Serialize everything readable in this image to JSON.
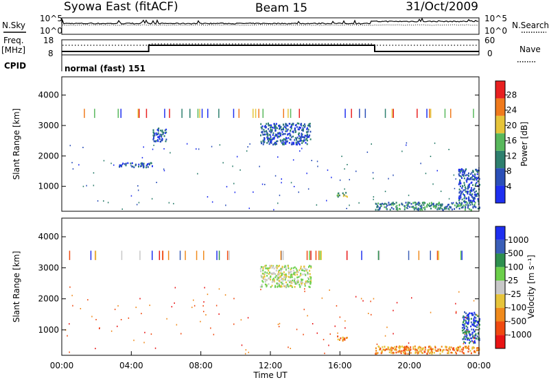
{
  "header": {
    "left": "Syowa East (fitACF)",
    "center": "Beam 15",
    "right": "31/Oct/2009"
  },
  "status_panel": {
    "nsky_label": "N.Sky",
    "nsky_top": "10^5",
    "nsky_bottom": "10^0",
    "nsearch_label": "N.Search",
    "nsearch_top": "10^5",
    "nsearch_bottom": "10^0",
    "freq_label": "Freq.",
    "freq_unit": "[MHz]",
    "freq_top": "18",
    "freq_bottom": "8",
    "nave_label": "Nave",
    "nave_top": "60",
    "nave_bottom": "0",
    "cpid_label": "CPID",
    "cpid_text": "normal (fast) 151"
  },
  "chart_data": [
    {
      "type": "heatmap",
      "name": "power",
      "ylabel": "Slant Range [km]",
      "xlabel": "",
      "ylim": [
        180,
        4600
      ],
      "yticks": [
        "1000",
        "2000",
        "3000",
        "4000"
      ],
      "xlim": [
        0,
        24
      ],
      "colorbar": {
        "label": "Power [dB]",
        "ticks": [
          "4",
          "8",
          "12",
          "16",
          "20",
          "24",
          "28"
        ],
        "colors": [
          "#1e2ff0",
          "#2b4fb8",
          "#2e7f6e",
          "#58b85c",
          "#e6c43a",
          "#f07a1c",
          "#e82020"
        ]
      },
      "features": [
        {
          "desc": "sparse echoes 2700-3000 km",
          "t": [
            5.2,
            6.0
          ],
          "r": [
            2500,
            2950
          ],
          "level": 1
        },
        {
          "desc": "scatter near 1750 km",
          "t": [
            3.2,
            5.2
          ],
          "r": [
            1650,
            1800
          ],
          "level": 1
        },
        {
          "desc": "main echo band",
          "t": [
            11.4,
            14.3
          ],
          "r": [
            2400,
            3100
          ],
          "level": 1
        },
        {
          "desc": "echo near 750 km",
          "t": [
            15.8,
            16.4
          ],
          "r": [
            680,
            820
          ],
          "level": 3
        },
        {
          "desc": "near-range echoes",
          "t": [
            18.0,
            24.0
          ],
          "r": [
            250,
            500
          ],
          "level": 2
        },
        {
          "desc": "late-day echoes",
          "t": [
            22.8,
            24.0
          ],
          "r": [
            500,
            1600
          ],
          "level": 1
        }
      ]
    },
    {
      "type": "heatmap",
      "name": "velocity",
      "ylabel": "Slant Range [km]",
      "xlabel": "Time UT",
      "ylim": [
        180,
        4600
      ],
      "yticks": [
        "1000",
        "2000",
        "3000",
        "4000"
      ],
      "xlim": [
        0,
        24
      ],
      "xticks": [
        "00:00",
        "04:00",
        "08:00",
        "12:00",
        "16:00",
        "20:00",
        "00:00"
      ],
      "colorbar": {
        "label": "Velocity [m s⁻¹]",
        "ticks": [
          "1000",
          "500",
          "100",
          "25",
          "-25",
          "-100",
          "-500",
          "-1000"
        ],
        "colors": [
          "#1e2ff0",
          "#3a5fb8",
          "#2e8f4e",
          "#6ccf4a",
          "#c8c8c8",
          "#e6c43a",
          "#f08a1c",
          "#f04a10",
          "#e81414"
        ]
      },
      "features": [
        {
          "desc": "main echo band, low velocity",
          "t": [
            11.4,
            14.3
          ],
          "r": [
            2400,
            3100
          ],
          "level": 4
        },
        {
          "desc": "echo near 750 km",
          "t": [
            15.8,
            16.4
          ],
          "r": [
            680,
            820
          ],
          "level": 2
        },
        {
          "desc": "near-range echoes",
          "t": [
            18.0,
            24.0
          ],
          "r": [
            250,
            500
          ],
          "level": 2
        },
        {
          "desc": "late-day receding echoes",
          "t": [
            23.0,
            24.0
          ],
          "r": [
            600,
            1600
          ],
          "level": 7
        }
      ]
    }
  ]
}
